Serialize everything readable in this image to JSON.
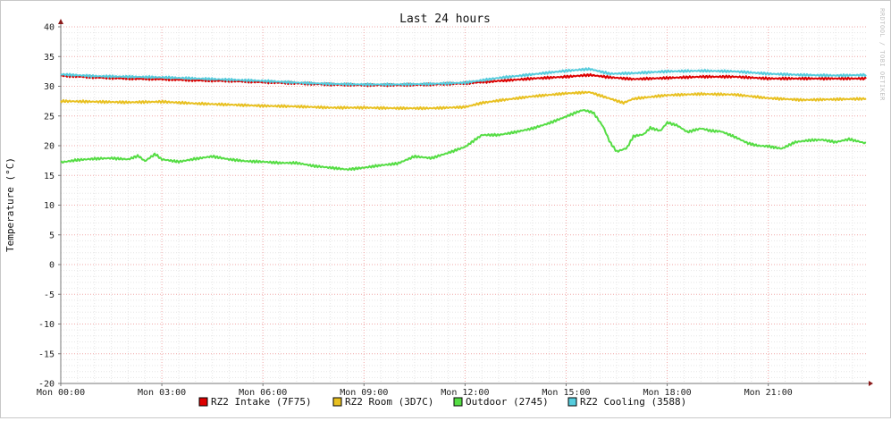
{
  "chart_data": {
    "type": "line",
    "title": "Last 24 hours",
    "ylabel": "Temperature (°C)",
    "xlabel": "",
    "watermark": "RRDTOOL / TOBI OETIKER",
    "ylim": [
      -20,
      40
    ],
    "xlim": [
      0,
      23.9
    ],
    "yticks": [
      40,
      35,
      30,
      25,
      20,
      15,
      10,
      5,
      0,
      -5,
      -10,
      -15,
      -20
    ],
    "xticks": [
      {
        "x": 0,
        "label": "Mon 00:00"
      },
      {
        "x": 3,
        "label": "Mon 03:00"
      },
      {
        "x": 6,
        "label": "Mon 06:00"
      },
      {
        "x": 9,
        "label": "Mon 09:00"
      },
      {
        "x": 12,
        "label": "Mon 12:00"
      },
      {
        "x": 15,
        "label": "Mon 15:00"
      },
      {
        "x": 18,
        "label": "Mon 18:00"
      },
      {
        "x": 21,
        "label": "Mon 21:00"
      }
    ],
    "grid": true,
    "legend_position": "bottom",
    "series": [
      {
        "name": "RZ2 Intake (7F75)",
        "color": "#dd0000",
        "x": [
          0,
          1,
          2,
          3,
          4,
          5,
          6,
          7,
          8,
          9,
          10,
          11,
          12,
          13,
          14,
          15,
          15.7,
          16.3,
          17,
          18,
          19,
          20,
          21,
          22,
          23,
          23.9
        ],
        "values": [
          31.8,
          31.5,
          31.3,
          31.2,
          31.0,
          30.9,
          30.7,
          30.5,
          30.3,
          30.2,
          30.2,
          30.3,
          30.5,
          30.9,
          31.3,
          31.6,
          31.9,
          31.5,
          31.2,
          31.4,
          31.6,
          31.6,
          31.3,
          31.3,
          31.3,
          31.3
        ]
      },
      {
        "name": "RZ2 Room (3D7C)",
        "color": "#e8c020",
        "x": [
          0,
          1,
          2,
          3,
          4,
          5,
          6,
          7,
          8,
          9,
          10,
          11,
          12,
          12.5,
          13,
          14,
          15,
          15.7,
          16.2,
          16.7,
          17,
          18,
          19,
          20,
          21,
          22,
          23,
          23.9
        ],
        "values": [
          27.5,
          27.4,
          27.3,
          27.4,
          27.1,
          26.9,
          26.7,
          26.6,
          26.4,
          26.4,
          26.3,
          26.3,
          26.5,
          27.2,
          27.6,
          28.3,
          28.8,
          29.0,
          28.1,
          27.2,
          27.9,
          28.5,
          28.7,
          28.6,
          28.0,
          27.7,
          27.8,
          27.9
        ]
      },
      {
        "name": "Outdoor (2745)",
        "color": "#55dd44",
        "x": [
          0,
          0.5,
          1,
          1.5,
          2,
          2.3,
          2.5,
          2.8,
          3,
          3.5,
          4,
          4.5,
          5,
          5.5,
          6,
          6.5,
          7,
          7.5,
          8,
          8.5,
          9,
          9.5,
          10,
          10.5,
          11,
          11.5,
          12,
          12.3,
          12.5,
          13,
          13.5,
          14,
          14.5,
          15,
          15.3,
          15.5,
          15.8,
          16.1,
          16.3,
          16.5,
          16.8,
          17,
          17.3,
          17.5,
          17.8,
          18,
          18.3,
          18.6,
          19,
          19.3,
          19.6,
          20,
          20.4,
          20.7,
          21,
          21.4,
          21.8,
          22.2,
          22.6,
          23,
          23.4,
          23.9
        ],
        "values": [
          17.2,
          17.6,
          17.8,
          17.9,
          17.7,
          18.3,
          17.4,
          18.6,
          17.7,
          17.3,
          17.8,
          18.2,
          17.7,
          17.4,
          17.3,
          17.1,
          17.1,
          16.6,
          16.3,
          16.0,
          16.3,
          16.7,
          17.0,
          18.2,
          17.9,
          18.8,
          19.8,
          21.0,
          21.8,
          21.8,
          22.3,
          22.9,
          23.8,
          24.9,
          25.6,
          26.0,
          25.6,
          23.2,
          20.6,
          19.0,
          19.6,
          21.6,
          21.9,
          23.0,
          22.5,
          23.9,
          23.4,
          22.3,
          22.9,
          22.5,
          22.4,
          21.5,
          20.4,
          20.0,
          19.9,
          19.5,
          20.6,
          20.9,
          21.0,
          20.6,
          21.1,
          20.4
        ]
      },
      {
        "name": "RZ2 Cooling (3588)",
        "color": "#55ccdd",
        "x": [
          0,
          1,
          2,
          3,
          4,
          5,
          6,
          7,
          8,
          9,
          10,
          11,
          12,
          13,
          14,
          15,
          15.7,
          16.3,
          17,
          18,
          19,
          20,
          21,
          22,
          23,
          23.9
        ],
        "values": [
          32.0,
          31.7,
          31.6,
          31.5,
          31.3,
          31.1,
          30.9,
          30.6,
          30.4,
          30.3,
          30.3,
          30.4,
          30.6,
          31.4,
          32.0,
          32.6,
          32.9,
          32.1,
          32.2,
          32.5,
          32.6,
          32.5,
          32.1,
          31.9,
          31.8,
          31.9
        ]
      }
    ]
  }
}
